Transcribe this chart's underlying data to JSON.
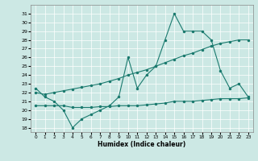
{
  "xlabel": "Humidex (Indice chaleur)",
  "background_color": "#cce8e4",
  "grid_color": "#ffffff",
  "line_color": "#1a7a6e",
  "xlim": [
    -0.5,
    23.5
  ],
  "ylim": [
    17.5,
    32.0
  ],
  "xticks": [
    0,
    1,
    2,
    3,
    4,
    5,
    6,
    7,
    8,
    9,
    10,
    11,
    12,
    13,
    14,
    15,
    16,
    17,
    18,
    19,
    20,
    21,
    22,
    23
  ],
  "yticks": [
    18,
    19,
    20,
    21,
    22,
    23,
    24,
    25,
    26,
    27,
    28,
    29,
    30,
    31
  ],
  "line1_y": [
    22.5,
    21.5,
    21.0,
    20.0,
    18.0,
    19.0,
    19.5,
    20.0,
    20.5,
    21.5,
    26.0,
    22.5,
    24.0,
    25.0,
    28.0,
    31.0,
    29.0,
    29.0,
    29.0,
    28.0,
    24.5,
    22.5,
    23.0,
    21.5
  ],
  "line2_y": [
    22.0,
    21.8,
    22.0,
    22.2,
    22.4,
    22.6,
    22.8,
    23.0,
    23.3,
    23.6,
    24.0,
    24.3,
    24.6,
    25.0,
    25.4,
    25.8,
    26.2,
    26.5,
    26.9,
    27.3,
    27.6,
    27.8,
    28.0,
    28.0
  ],
  "line3_y": [
    20.5,
    20.5,
    20.5,
    20.5,
    20.3,
    20.3,
    20.3,
    20.4,
    20.4,
    20.5,
    20.5,
    20.5,
    20.6,
    20.7,
    20.8,
    21.0,
    21.0,
    21.0,
    21.1,
    21.2,
    21.3,
    21.3,
    21.3,
    21.4
  ]
}
